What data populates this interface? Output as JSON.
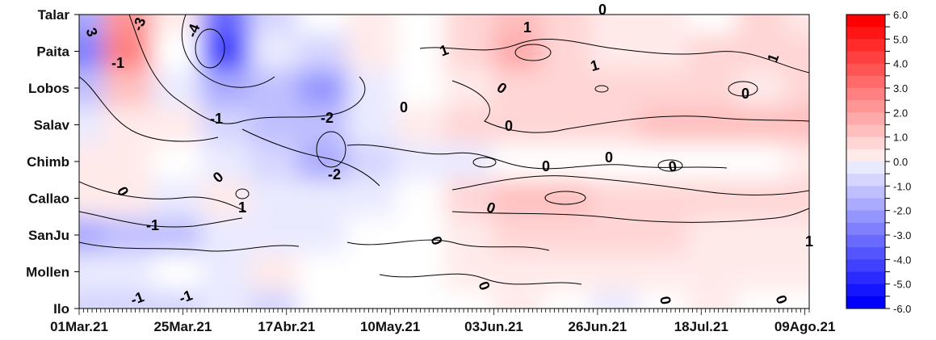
{
  "chart_data": {
    "type": "heatmap",
    "title": "",
    "xlabel": "",
    "ylabel": "",
    "x_tick_labels": [
      "01Mar.21",
      "25Mar.21",
      "17Abr.21",
      "10May.21",
      "03Jun.21",
      "26Jun.21",
      "18Jul.21",
      "09Ago.21"
    ],
    "y_tick_labels": [
      "Talar",
      "Paita",
      "Lobos",
      "Salav",
      "Chimb",
      "Callao",
      "SanJu",
      "Mollen",
      "Ilo"
    ],
    "x_range": [
      "01Mar.21",
      "17Ago.21"
    ],
    "colorbar": {
      "ticks": [
        "6.0",
        "5.0",
        "4.0",
        "3.0",
        "2.0",
        "1.0",
        "0.0",
        "-1.0",
        "-2.0",
        "-3.0",
        "-4.0",
        "-5.0",
        "-6.0"
      ],
      "range": [
        -6,
        6
      ],
      "step": 0.5,
      "colors": {
        "negative": "#0000ff",
        "zero": "#ffffff",
        "positive": "#ff0000"
      }
    },
    "contour_labels": [
      "-4",
      "-3",
      "3",
      "-1",
      "-1",
      "-2",
      "-2",
      "-1",
      "-1",
      "-1",
      "0",
      "0",
      "0",
      "0",
      "0",
      "0",
      "0",
      "0",
      "0",
      "0",
      "0",
      "0",
      "0",
      "1",
      "1",
      "1",
      "1",
      "1",
      "1",
      "0",
      "0"
    ],
    "anomaly_samples": {
      "dates": [
        "01Mar.21",
        "12Mar.21",
        "25Mar.21",
        "05Abr.21",
        "17Abr.21",
        "28Abr.21",
        "10May.21",
        "21May.21",
        "03Jun.21",
        "14Jun.21",
        "26Jun.21",
        "07Jul.21",
        "18Jul.21",
        "29Jul.21",
        "09Ago.21",
        "17Ago.21"
      ],
      "stations": [
        "Talar",
        "Paita",
        "Lobos",
        "Salav",
        "Chimb",
        "Callao",
        "SanJu",
        "Mollen",
        "Ilo"
      ],
      "values": [
        [
          -2.0,
          2.5,
          0.5,
          -3.5,
          -1.0,
          -0.2,
          0.5,
          0.2,
          1.0,
          1.5,
          0.8,
          0.5,
          0.3,
          0.2,
          0.8,
          0.5
        ],
        [
          -3.0,
          3.0,
          0.0,
          -4.5,
          -0.5,
          -1.0,
          0.5,
          0.0,
          1.2,
          2.0,
          1.0,
          0.5,
          0.5,
          0.8,
          1.0,
          0.8
        ],
        [
          -1.5,
          1.5,
          -0.5,
          -2.0,
          -1.5,
          -2.5,
          -0.5,
          0.0,
          0.5,
          1.0,
          0.8,
          1.0,
          1.2,
          1.0,
          0.5,
          1.0
        ],
        [
          -0.5,
          0.5,
          0.5,
          -1.0,
          -1.5,
          -1.5,
          -0.5,
          0.5,
          0.8,
          1.0,
          1.0,
          1.2,
          1.5,
          1.5,
          1.5,
          1.5
        ],
        [
          0.5,
          0.5,
          0.0,
          -0.5,
          -1.0,
          -2.0,
          -1.0,
          -0.5,
          -0.5,
          0.0,
          0.0,
          0.2,
          -0.2,
          0.0,
          0.2,
          0.5
        ],
        [
          0.5,
          0.5,
          -0.5,
          0.5,
          -0.5,
          -0.5,
          -0.5,
          0.0,
          0.8,
          1.5,
          1.5,
          1.2,
          1.0,
          1.0,
          0.8,
          1.0
        ],
        [
          -2.0,
          -1.5,
          -1.5,
          -0.5,
          -0.5,
          -0.5,
          0.0,
          0.0,
          0.5,
          1.0,
          1.0,
          0.8,
          0.8,
          0.5,
          0.5,
          0.5
        ],
        [
          -0.5,
          -0.5,
          0.0,
          -0.5,
          0.5,
          0.0,
          0.0,
          0.2,
          0.5,
          0.5,
          0.5,
          0.5,
          0.5,
          0.5,
          0.5,
          0.5
        ],
        [
          -1.0,
          -1.0,
          -1.0,
          -0.5,
          -1.0,
          0.0,
          0.0,
          0.0,
          0.0,
          0.5,
          0.0,
          -0.5,
          0.0,
          0.5,
          0.2,
          0.2
        ]
      ]
    }
  }
}
